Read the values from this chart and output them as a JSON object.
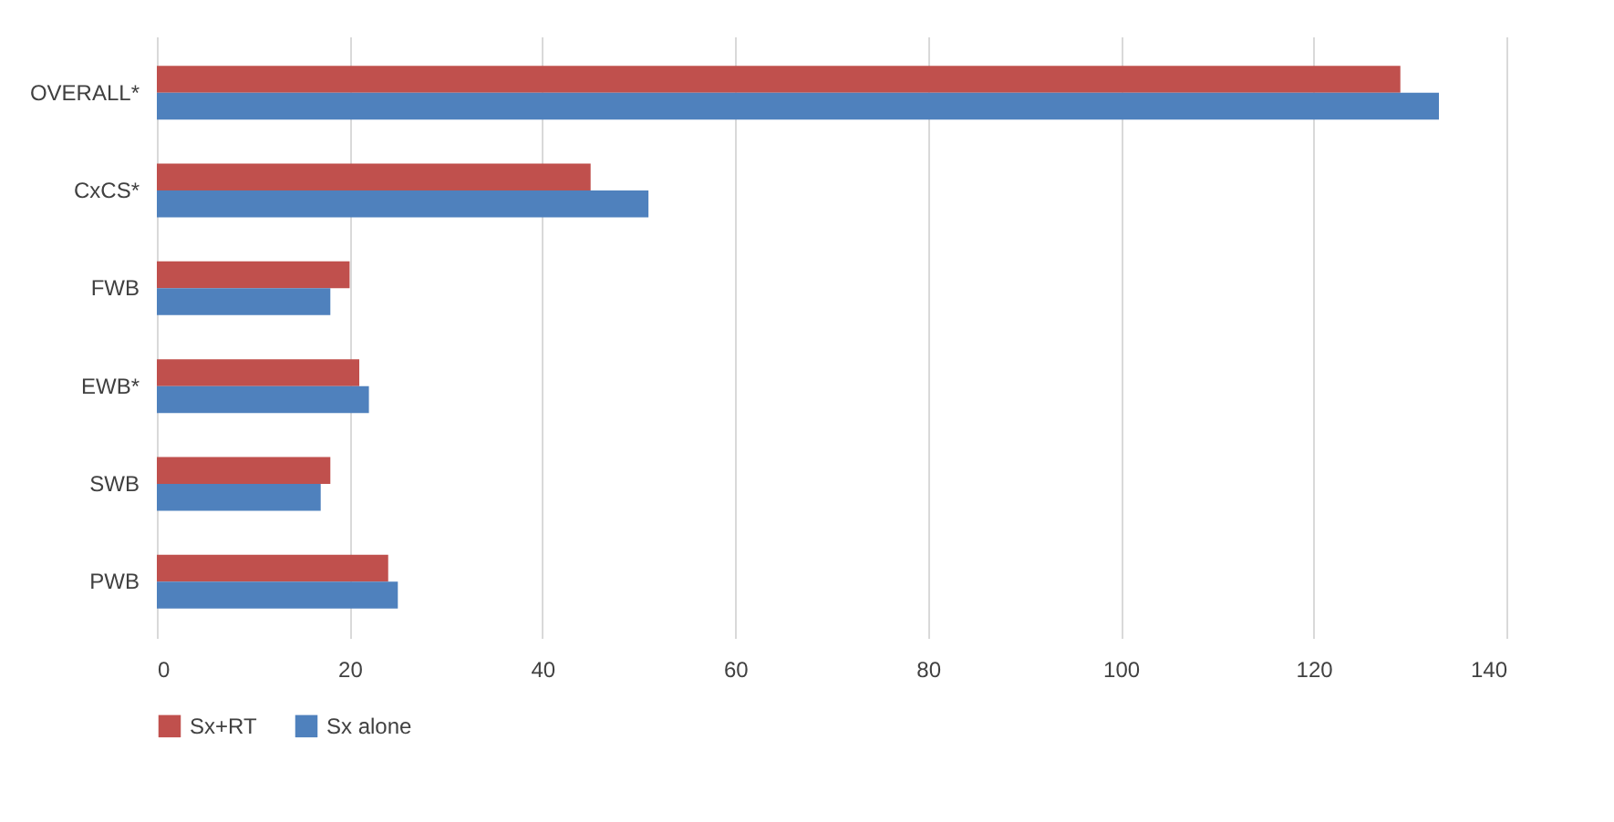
{
  "chart_data": {
    "type": "bar",
    "orientation": "horizontal",
    "categories": [
      "OVERALL*",
      "CxCS*",
      "FWB",
      "EWB*",
      "SWB",
      "PWB"
    ],
    "series": [
      {
        "name": "Sx+RT",
        "color": "#c0504d",
        "values": [
          129,
          45,
          20,
          21,
          18,
          24
        ]
      },
      {
        "name": "Sx alone",
        "color": "#4f81bd",
        "values": [
          133,
          51,
          18,
          22,
          17,
          25
        ]
      }
    ],
    "xlim": [
      0,
      140
    ],
    "xticks": [
      0,
      20,
      40,
      60,
      80,
      100,
      120,
      140
    ],
    "grid": "x",
    "legend": "bottom"
  }
}
